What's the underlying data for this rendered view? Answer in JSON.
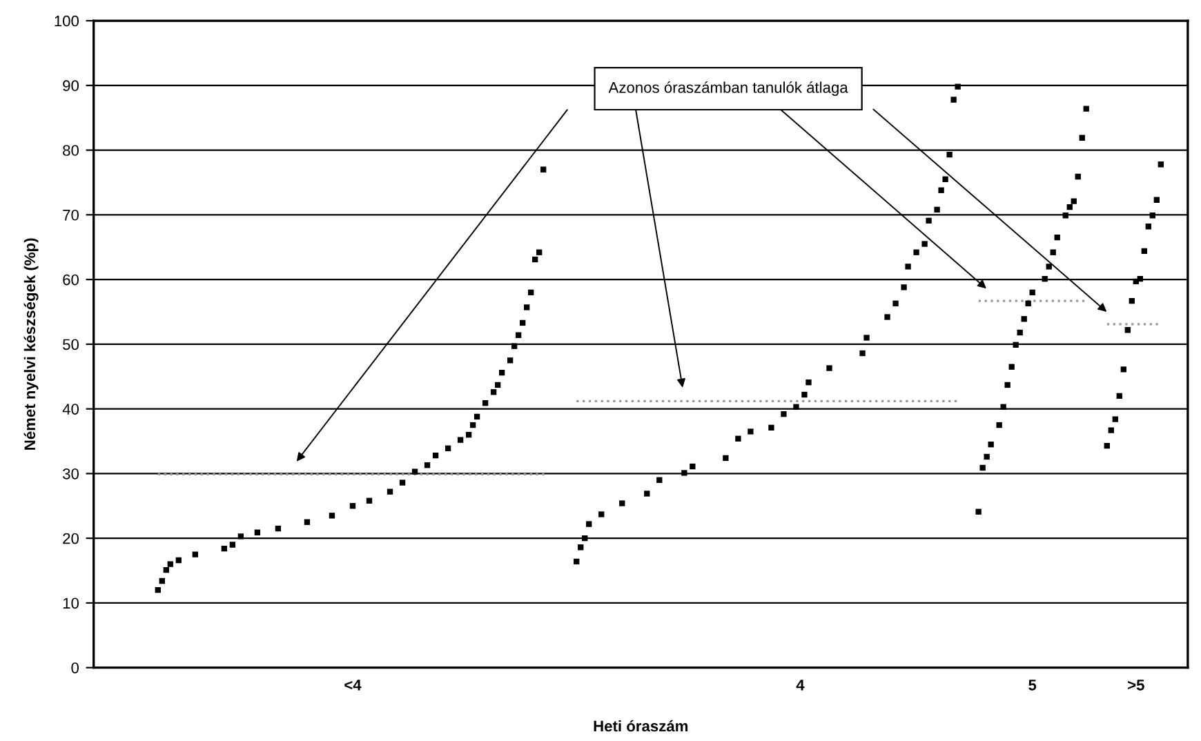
{
  "chart_data": {
    "type": "scatter",
    "xlabel": "Heti óraszám",
    "ylabel": "Német nyelvi készségek (%p)",
    "categories": [
      null,
      null,
      null,
      null,
      null,
      null,
      null,
      null,
      null,
      null,
      null,
      null,
      null,
      null,
      null,
      null,
      null,
      null,
      null,
      null,
      null,
      null,
      null,
      null,
      null,
      null,
      null,
      null,
      null,
      null,
      null,
      null,
      null,
      null,
      null,
      null,
      null,
      null,
      null,
      null,
      null,
      null,
      null,
      null,
      null,
      null,
      null,
      null,
      null,
      null,
      null,
      null,
      null,
      null,
      null,
      null,
      null,
      null,
      null,
      null,
      null,
      null,
      "<4",
      null,
      null,
      null,
      null,
      null,
      null,
      null,
      null,
      null,
      null,
      null,
      null,
      null,
      null,
      null,
      null,
      null,
      null,
      null,
      null,
      null,
      null,
      null,
      null,
      null,
      null,
      null,
      null,
      null,
      null,
      null,
      null,
      null,
      null,
      null,
      null,
      null,
      null,
      null,
      null,
      null,
      null,
      null,
      null,
      null,
      null,
      null,
      null,
      null,
      null,
      null,
      null,
      null,
      null,
      null,
      null,
      null,
      null,
      null,
      null,
      null,
      null,
      null,
      null,
      null,
      null,
      null,
      null,
      null,
      null,
      null,
      null,
      null,
      null,
      null,
      null,
      null,
      null,
      null,
      null,
      null,
      null,
      null,
      null,
      null,
      null,
      null,
      null,
      null,
      null,
      null,
      null,
      null,
      null,
      null,
      null,
      null,
      null,
      null,
      null,
      null,
      null,
      null,
      null,
      null,
      null,
      null,
      "4",
      null,
      null,
      null,
      null,
      null,
      null,
      null,
      null,
      null,
      null,
      null,
      null,
      null,
      null,
      null,
      null,
      null,
      null,
      null,
      null,
      null,
      null,
      null,
      null,
      null,
      null,
      null,
      null,
      null,
      null,
      null,
      null,
      null,
      null,
      null,
      null,
      null,
      null,
      null,
      null,
      null,
      null,
      null,
      null,
      null,
      null,
      null,
      null,
      null,
      null,
      null,
      null,
      null,
      null,
      null,
      "5",
      null,
      null,
      null,
      null,
      null,
      null,
      null,
      null,
      null,
      null,
      null,
      null,
      null,
      null,
      null,
      null,
      null,
      null,
      null,
      null,
      null,
      null,
      null,
      null,
      ">5",
      null,
      null,
      null,
      null,
      null,
      null,
      null,
      null,
      null,
      null,
      null,
      null
    ],
    "ylim": [
      0,
      100
    ],
    "yticks": [
      0,
      10,
      20,
      30,
      40,
      50,
      60,
      70,
      80,
      90,
      100
    ],
    "grid": "y",
    "legend": false,
    "marker": "square",
    "annotations": [
      "Azonos óraszámban tanulók átlaga"
    ],
    "series": [
      {
        "color": "#000000",
        "values": [
          null,
          null,
          null,
          null,
          null,
          null,
          null,
          null,
          null,
          null,
          null,
          null,
          null,
          null,
          null,
          12.0,
          13.4,
          15.1,
          16.0,
          null,
          16.6,
          null,
          null,
          null,
          17.5,
          null,
          null,
          null,
          null,
          null,
          null,
          18.4,
          null,
          19.0,
          null,
          20.3,
          null,
          null,
          null,
          20.9,
          null,
          null,
          null,
          null,
          21.5,
          null,
          null,
          null,
          null,
          null,
          null,
          22.5,
          null,
          null,
          null,
          null,
          null,
          23.5,
          null,
          null,
          null,
          null,
          25.0,
          null,
          null,
          null,
          25.8,
          null,
          null,
          null,
          null,
          27.2,
          null,
          null,
          28.6,
          null,
          null,
          30.3,
          null,
          null,
          31.3,
          null,
          32.8,
          null,
          null,
          33.9,
          null,
          null,
          35.2,
          null,
          36.0,
          37.5,
          38.8,
          null,
          40.9,
          null,
          42.6,
          43.7,
          45.6,
          null,
          47.5,
          49.7,
          51.4,
          53.3,
          55.7,
          58.0,
          63.1,
          64.2,
          77.0,
          null,
          null,
          null,
          null,
          null,
          null,
          null,
          16.4,
          18.6,
          20.0,
          22.2,
          null,
          null,
          23.7,
          null,
          null,
          null,
          null,
          25.4,
          null,
          null,
          null,
          null,
          null,
          26.9,
          null,
          null,
          29.0,
          null,
          null,
          null,
          null,
          null,
          30.1,
          null,
          31.1,
          null,
          null,
          null,
          null,
          null,
          null,
          null,
          32.4,
          null,
          null,
          35.4,
          null,
          null,
          36.5,
          null,
          null,
          null,
          null,
          37.1,
          null,
          null,
          39.2,
          null,
          null,
          40.3,
          null,
          42.2,
          44.1,
          null,
          null,
          null,
          null,
          46.3,
          null,
          null,
          null,
          null,
          null,
          null,
          null,
          48.6,
          51.0,
          null,
          null,
          null,
          null,
          54.2,
          null,
          56.3,
          null,
          58.8,
          62.0,
          null,
          64.2,
          null,
          65.5,
          69.1,
          null,
          70.8,
          73.8,
          75.5,
          79.3,
          87.8,
          89.8,
          null,
          null,
          null,
          null,
          24.1,
          30.9,
          32.6,
          34.5,
          null,
          37.5,
          40.3,
          43.7,
          46.5,
          49.9,
          51.8,
          53.9,
          56.3,
          58.0,
          null,
          null,
          60.1,
          62.0,
          64.2,
          66.5,
          null,
          69.9,
          71.2,
          72.1,
          75.9,
          81.9,
          86.4,
          null,
          null,
          null,
          null,
          34.3,
          36.7,
          38.4,
          42.0,
          46.1,
          52.2,
          56.7,
          59.7,
          60.1,
          64.4,
          68.2,
          69.9,
          72.3,
          77.8,
          null,
          null,
          null,
          null,
          null,
          null
        ]
      },
      {
        "type": "line",
        "color": "#999999",
        "line_style": "dotted",
        "marker": "none",
        "values": [
          null,
          null,
          null,
          null,
          null,
          null,
          null,
          null,
          null,
          null,
          null,
          null,
          null,
          null,
          null,
          29.9,
          29.9,
          29.9,
          29.9,
          29.9,
          29.9,
          29.9,
          29.9,
          29.9,
          29.9,
          29.9,
          29.9,
          29.9,
          29.9,
          29.9,
          29.9,
          29.9,
          29.9,
          29.9,
          29.9,
          29.9,
          29.9,
          29.9,
          29.9,
          29.9,
          29.9,
          29.9,
          29.9,
          29.9,
          29.9,
          29.9,
          29.9,
          29.9,
          29.9,
          29.9,
          29.9,
          29.9,
          29.9,
          29.9,
          29.9,
          29.9,
          29.9,
          29.9,
          29.9,
          29.9,
          29.9,
          29.9,
          29.9,
          29.9,
          29.9,
          29.9,
          29.9,
          29.9,
          29.9,
          29.9,
          29.9,
          29.9,
          29.9,
          29.9,
          29.9,
          29.9,
          29.9,
          29.9,
          29.9,
          29.9,
          29.9,
          29.9,
          29.9,
          29.9,
          29.9,
          29.9,
          29.9,
          29.9,
          29.9,
          29.9,
          29.9,
          29.9,
          29.9,
          29.9,
          29.9,
          29.9,
          29.9,
          29.9,
          29.9,
          29.9,
          29.9,
          29.9,
          29.9,
          29.9,
          29.9,
          29.9,
          29.9,
          29.9,
          29.9,
          29.9,
          null,
          null,
          null,
          null,
          null,
          null,
          41.2,
          41.2,
          41.2,
          41.2,
          41.2,
          41.2,
          41.2,
          41.2,
          41.2,
          41.2,
          41.2,
          41.2,
          41.2,
          41.2,
          41.2,
          41.2,
          41.2,
          41.2,
          41.2,
          41.2,
          41.2,
          41.2,
          41.2,
          41.2,
          41.2,
          41.2,
          41.2,
          41.2,
          41.2,
          41.2,
          41.2,
          41.2,
          41.2,
          41.2,
          41.2,
          41.2,
          41.2,
          41.2,
          41.2,
          41.2,
          41.2,
          41.2,
          41.2,
          41.2,
          41.2,
          41.2,
          41.2,
          41.2,
          41.2,
          41.2,
          41.2,
          41.2,
          41.2,
          41.2,
          41.2,
          41.2,
          41.2,
          41.2,
          41.2,
          41.2,
          41.2,
          41.2,
          41.2,
          41.2,
          41.2,
          41.2,
          41.2,
          41.2,
          41.2,
          41.2,
          41.2,
          41.2,
          41.2,
          41.2,
          41.2,
          41.2,
          41.2,
          41.2,
          41.2,
          41.2,
          41.2,
          41.2,
          41.2,
          41.2,
          41.2,
          41.2,
          41.2,
          41.2,
          41.2,
          41.2,
          41.2,
          41.2,
          41.2,
          null,
          null,
          null,
          null,
          56.7,
          56.7,
          56.7,
          56.7,
          56.7,
          56.7,
          56.7,
          56.7,
          56.7,
          56.7,
          56.7,
          56.7,
          56.7,
          56.7,
          56.7,
          56.7,
          56.7,
          56.7,
          56.7,
          56.7,
          56.7,
          56.7,
          56.7,
          56.7,
          56.7,
          56.7,
          56.7,
          null,
          null,
          null,
          null,
          53.1,
          53.1,
          53.1,
          53.1,
          53.1,
          53.1,
          53.1,
          53.1,
          53.1,
          53.1,
          53.1,
          53.1,
          53.1,
          53.1,
          null,
          null,
          null,
          null,
          null,
          null
        ]
      }
    ]
  }
}
